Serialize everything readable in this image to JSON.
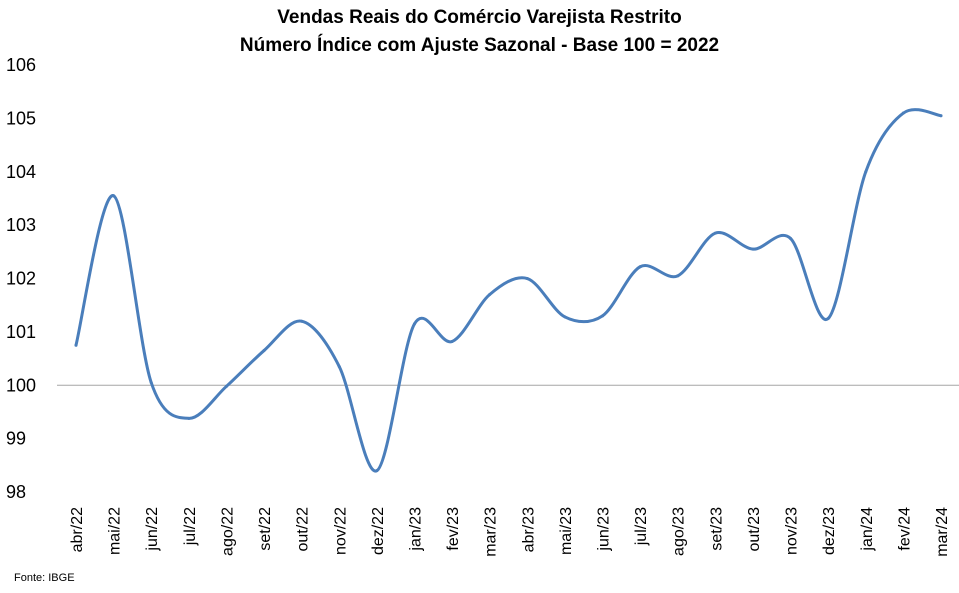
{
  "chart_data": {
    "type": "line",
    "title": "Vendas Reais do Comércio Varejista Restrito",
    "subtitle": "Número Índice com Ajuste Sazonal - Base 100 = 2022",
    "xlabel": "",
    "ylabel": "",
    "source": "Fonte: IBGE",
    "categories": [
      "abr/22",
      "mai/22",
      "jun/22",
      "jul/22",
      "ago/22",
      "set/22",
      "out/22",
      "nov/22",
      "dez/22",
      "jan/23",
      "fev/23",
      "mar/23",
      "abr/23",
      "mai/23",
      "jun/23",
      "jul/23",
      "ago/23",
      "set/23",
      "out/23",
      "nov/23",
      "dez/23",
      "jan/24",
      "fev/24",
      "mar/24"
    ],
    "yticks": [
      "98",
      "99",
      "100",
      "101",
      "102",
      "103",
      "104",
      "105",
      "106"
    ],
    "ylim": [
      98,
      106
    ],
    "reference_line": 100,
    "grid": false,
    "series": [
      {
        "name": "",
        "color": "#4a7ebb",
        "values": [
          100.75,
          103.55,
          100.05,
          99.38,
          99.98,
          100.65,
          101.2,
          100.35,
          98.4,
          101.15,
          100.82,
          101.7,
          102.0,
          101.28,
          101.3,
          102.22,
          102.05,
          102.85,
          102.55,
          102.75,
          101.25,
          104.0,
          105.1,
          105.05
        ]
      }
    ]
  }
}
